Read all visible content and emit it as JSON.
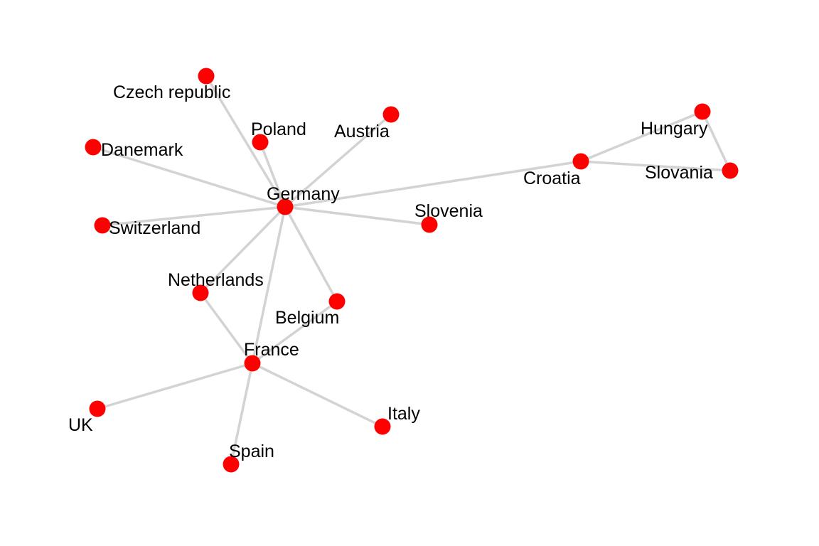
{
  "style": {
    "edge_color": "#d3d3d3",
    "node_color": "#ff0000",
    "label_color": "#000000"
  },
  "network": {
    "nodes": [
      {
        "id": "germany",
        "label": "Germany"
      },
      {
        "id": "czech",
        "label": "Czech republic"
      },
      {
        "id": "poland",
        "label": "Poland"
      },
      {
        "id": "austria",
        "label": "Austria"
      },
      {
        "id": "danemark",
        "label": "Danemark"
      },
      {
        "id": "switzerland",
        "label": "Switzerland"
      },
      {
        "id": "slovenia",
        "label": "Slovenia"
      },
      {
        "id": "croatia",
        "label": "Croatia"
      },
      {
        "id": "hungary",
        "label": "Hungary"
      },
      {
        "id": "slovania",
        "label": "Slovania"
      },
      {
        "id": "netherlands",
        "label": "Netherlands"
      },
      {
        "id": "belgium",
        "label": "Belgium"
      },
      {
        "id": "france",
        "label": "France"
      },
      {
        "id": "uk",
        "label": "UK"
      },
      {
        "id": "spain",
        "label": "Spain"
      },
      {
        "id": "italy",
        "label": "Italy"
      }
    ],
    "edges": [
      [
        "germany",
        "czech"
      ],
      [
        "germany",
        "poland"
      ],
      [
        "germany",
        "austria"
      ],
      [
        "germany",
        "danemark"
      ],
      [
        "germany",
        "switzerland"
      ],
      [
        "germany",
        "slovenia"
      ],
      [
        "germany",
        "croatia"
      ],
      [
        "germany",
        "netherlands"
      ],
      [
        "germany",
        "belgium"
      ],
      [
        "germany",
        "france"
      ],
      [
        "croatia",
        "hungary"
      ],
      [
        "croatia",
        "slovania"
      ],
      [
        "hungary",
        "slovania"
      ],
      [
        "netherlands",
        "france"
      ],
      [
        "belgium",
        "france"
      ],
      [
        "france",
        "uk"
      ],
      [
        "france",
        "spain"
      ],
      [
        "france",
        "italy"
      ]
    ]
  }
}
